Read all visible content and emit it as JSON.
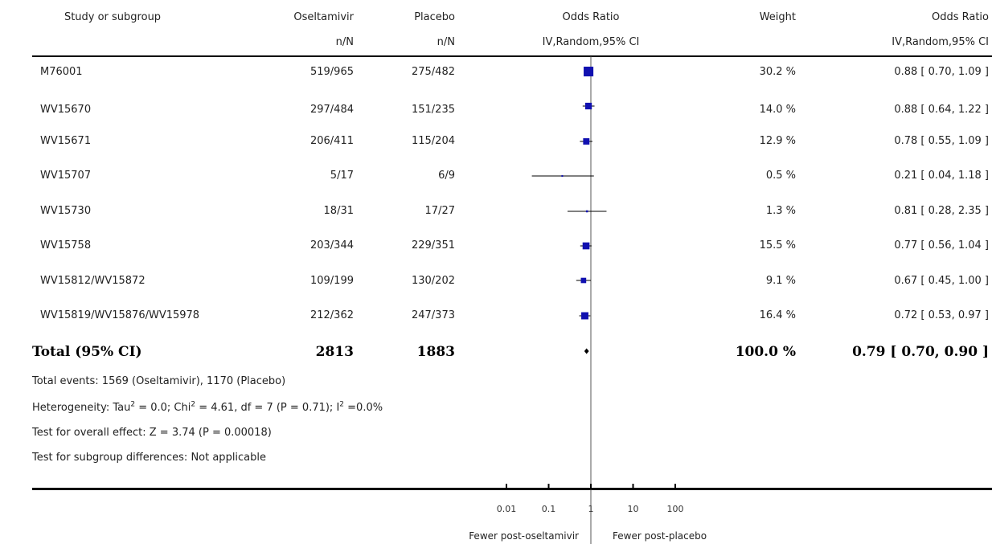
{
  "header": {
    "study_col": "Study or subgroup",
    "exp_col": "Oseltamivir",
    "ctrl_col": "Placebo",
    "or_col": "Odds Ratio",
    "weight_col": "Weight",
    "or_col2": "Odds Ratio",
    "exp_sub": "n/N",
    "ctrl_sub": "n/N",
    "or_sub": "IV,Random,95% CI",
    "or_sub2": "IV,Random,95% CI"
  },
  "rows": [
    {
      "study": "M76001",
      "exp": "519/965",
      "ctrl": "275/482",
      "weight": "30.2 %",
      "ci_text": "0.88 [ 0.70, 1.09 ]"
    },
    {
      "study": "WV15670",
      "exp": "297/484",
      "ctrl": "151/235",
      "weight": "14.0 %",
      "ci_text": "0.88 [ 0.64, 1.22 ]"
    },
    {
      "study": "WV15671",
      "exp": "206/411",
      "ctrl": "115/204",
      "weight": "12.9 %",
      "ci_text": "0.78 [ 0.55, 1.09 ]"
    },
    {
      "study": "WV15707",
      "exp": "5/17",
      "ctrl": "6/9",
      "weight": "0.5 %",
      "ci_text": "0.21 [ 0.04, 1.18 ]"
    },
    {
      "study": "WV15730",
      "exp": "18/31",
      "ctrl": "17/27",
      "weight": "1.3 %",
      "ci_text": "0.81 [ 0.28, 2.35 ]"
    },
    {
      "study": "WV15758",
      "exp": "203/344",
      "ctrl": "229/351",
      "weight": "15.5 %",
      "ci_text": "0.77 [ 0.56, 1.04 ]"
    },
    {
      "study": "WV15812/WV15872",
      "exp": "109/199",
      "ctrl": "130/202",
      "weight": "9.1 %",
      "ci_text": "0.67 [ 0.45, 1.00 ]"
    },
    {
      "study": "WV15819/WV15876/WV15978",
      "exp": "212/362",
      "ctrl": "247/373",
      "weight": "16.4 %",
      "ci_text": "0.72 [ 0.53, 0.97 ]"
    }
  ],
  "total": {
    "label": "Total (95% CI)",
    "exp": "2813",
    "ctrl": "1883",
    "weight": "100.0 %",
    "ci_text": "0.79 [ 0.70, 0.90 ]"
  },
  "footer": {
    "events": "Total events: 1569 (Oseltamivir), 1170 (Placebo)",
    "het_a": "Heterogeneity: Tau",
    "het_b": " = 0.0; Chi",
    "het_c": " = 4.61, df = 7 (P = 0.71); I",
    "het_d": " =0.0%",
    "sup2": "2",
    "overall": "Test for overall effect: Z = 3.74 (P = 0.00018)",
    "subgroup": "Test for subgroup differences: Not applicable"
  },
  "axis": {
    "favours_left": "Fewer post-oseltamivir",
    "favours_right": "Fewer post-placebo"
  },
  "colors": {
    "marker": "#1010b0",
    "line": "#000000"
  },
  "chart_data": {
    "type": "forest",
    "x_scale": "log",
    "xlim": [
      0.01,
      100
    ],
    "tick_values": [
      0.01,
      0.1,
      1,
      10,
      100
    ],
    "tick_labels": [
      "0.01",
      "0.1",
      "1",
      "10",
      "100"
    ],
    "reference_line": 1,
    "studies": [
      {
        "name": "M76001",
        "or": 0.88,
        "lo": 0.7,
        "hi": 1.09,
        "weight": 30.2
      },
      {
        "name": "WV15670",
        "or": 0.88,
        "lo": 0.64,
        "hi": 1.22,
        "weight": 14.0
      },
      {
        "name": "WV15671",
        "or": 0.78,
        "lo": 0.55,
        "hi": 1.09,
        "weight": 12.9
      },
      {
        "name": "WV15707",
        "or": 0.21,
        "lo": 0.04,
        "hi": 1.18,
        "weight": 0.5
      },
      {
        "name": "WV15730",
        "or": 0.81,
        "lo": 0.28,
        "hi": 2.35,
        "weight": 1.3
      },
      {
        "name": "WV15758",
        "or": 0.77,
        "lo": 0.56,
        "hi": 1.04,
        "weight": 15.5
      },
      {
        "name": "WV15812/WV15872",
        "or": 0.67,
        "lo": 0.45,
        "hi": 1.0,
        "weight": 9.1
      },
      {
        "name": "WV15819/WV15876/WV15978",
        "or": 0.72,
        "lo": 0.53,
        "hi": 0.97,
        "weight": 16.4
      }
    ],
    "total": {
      "or": 0.79,
      "lo": 0.7,
      "hi": 0.9
    }
  }
}
